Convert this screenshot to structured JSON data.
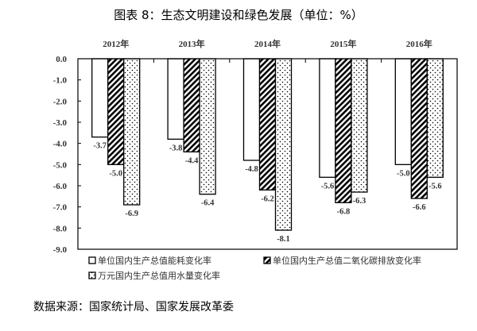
{
  "title": "图表 8：生态文明建设和绿色发展（单位：%）",
  "source": "数据来源：国家统计局、国家发展改革委",
  "chart_data": {
    "type": "bar",
    "title": "图表 8：生态文明建设和绿色发展（单位：%）",
    "categories": [
      "2012年",
      "2013年",
      "2014年",
      "2015年",
      "2016年"
    ],
    "category_axis_position": "top",
    "series": [
      {
        "name": "单位国内生产总值能耗变化率",
        "values": [
          -3.7,
          -3.8,
          -4.8,
          -5.6,
          -5.0
        ],
        "pattern": "white"
      },
      {
        "name": "单位国内生产总值二氧化碳排放变化率",
        "values": [
          -5.0,
          -4.4,
          -6.2,
          -6.8,
          -6.6
        ],
        "pattern": "diagonal-hatch"
      },
      {
        "name": "万元国内生产总值用水量变化率",
        "values": [
          -6.9,
          -6.4,
          -8.1,
          -6.3,
          -5.6
        ],
        "pattern": "dots"
      }
    ],
    "ylim": [
      -9.0,
      0.0
    ],
    "yticks": [
      "0.0",
      "-1.0",
      "-2.0",
      "-3.0",
      "-4.0",
      "-5.0",
      "-6.0",
      "-7.0",
      "-8.0",
      "-9.0"
    ],
    "grid": false,
    "legend_placement": "bottom"
  }
}
